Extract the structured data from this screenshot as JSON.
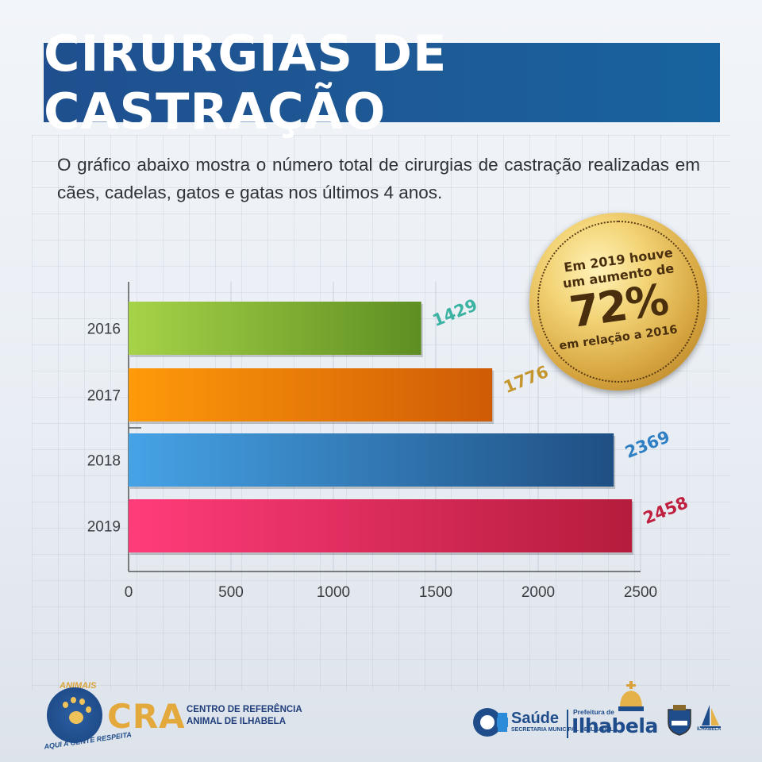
{
  "header": {
    "title": "CIRURGIAS DE CASTRAÇÃO"
  },
  "intro": {
    "text": "O gráfico abaixo mostra o número total de cirurgias de castração realizadas em cães, cadelas, gatos e gatas nos últimos 4 anos."
  },
  "seal": {
    "line1": "Em 2019 houve",
    "line2": "um aumento de",
    "value": "72%",
    "line3": "em relação a 2016"
  },
  "chart_data": {
    "type": "bar",
    "orientation": "horizontal",
    "categories": [
      "2016",
      "2017",
      "2018",
      "2019"
    ],
    "values": [
      1429,
      1776,
      2369,
      2458
    ],
    "data_labels": [
      "1429",
      "1776",
      "2369",
      "2458"
    ],
    "colors": [
      [
        "#a6d348",
        "#5e8e22"
      ],
      [
        "#ff9a0a",
        "#cf5b06"
      ],
      [
        "#46a3e6",
        "#1f4f83"
      ],
      [
        "#ff3c7a",
        "#b51c3c"
      ]
    ],
    "label_colors": [
      "#3bb3a2",
      "#c4962d",
      "#2f7fc4",
      "#c0203f"
    ],
    "xlim": [
      0,
      2500
    ],
    "xticks": [
      "0",
      "500",
      "1000",
      "1500",
      "2000",
      "2500"
    ],
    "grid": true,
    "title": "",
    "xlabel": "",
    "ylabel": ""
  },
  "footer": {
    "left": {
      "logo_top": "ANIMAIS",
      "logo_bottom": "AQUI A GENTE RESPEITA",
      "brand": "CRA",
      "sub_line1": "CENTRO DE REFERÊNCIA",
      "sub_line2": "ANIMAL DE ILHABELA"
    },
    "right": {
      "saude": "Saúde",
      "saude_sub": "SECRETARIA MUNICIPAL DE ILHABELA",
      "prefeitura": "Prefeitura de",
      "city": "Ilhabela",
      "sail_label": "ILHABELA"
    }
  }
}
